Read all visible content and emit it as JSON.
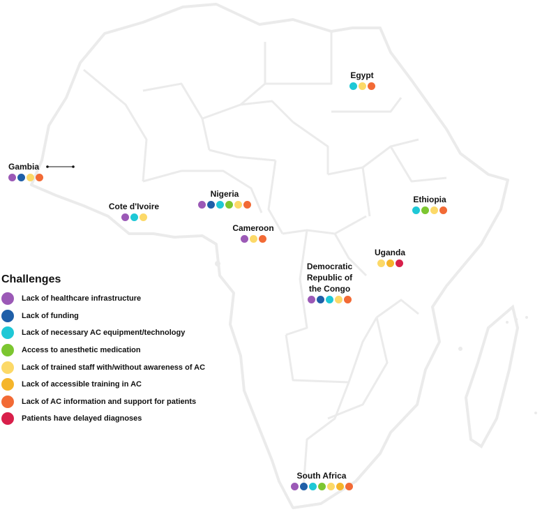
{
  "legend": {
    "title": "Challenges",
    "items": [
      {
        "key": "infra",
        "label": "Lack of healthcare infrastructure",
        "color": "#9b59b6"
      },
      {
        "key": "funding",
        "label": "Lack of funding",
        "color": "#1f5fa8"
      },
      {
        "key": "equipment",
        "label": "Lack of necessary AC equipment/technology",
        "color": "#1ec8d6"
      },
      {
        "key": "anesthetic",
        "label": "Access to anesthetic medication",
        "color": "#7cc630"
      },
      {
        "key": "staff",
        "label": "Lack of trained staff with/without awareness of AC",
        "color": "#fcd968"
      },
      {
        "key": "training",
        "label": "Lack of accessible training in AC",
        "color": "#f5b52a"
      },
      {
        "key": "info",
        "label": "Lack of AC information and support for patients",
        "color": "#f26a35"
      },
      {
        "key": "delayed",
        "label": "Patients have delayed diagnoses",
        "color": "#d81f4a"
      }
    ]
  },
  "countries": [
    {
      "key": "egypt",
      "name": "Egypt",
      "challenges": [
        "equipment",
        "staff",
        "info"
      ]
    },
    {
      "key": "gambia",
      "name": "Gambia",
      "challenges": [
        "infra",
        "funding",
        "staff",
        "info"
      ]
    },
    {
      "key": "cote",
      "name": "Cote d'Ivoire",
      "challenges": [
        "infra",
        "equipment",
        "staff"
      ]
    },
    {
      "key": "nigeria",
      "name": "Nigeria",
      "challenges": [
        "infra",
        "funding",
        "equipment",
        "anesthetic",
        "staff",
        "info"
      ]
    },
    {
      "key": "cameroon",
      "name": "Cameroon",
      "challenges": [
        "infra",
        "staff",
        "info"
      ]
    },
    {
      "key": "ethiopia",
      "name": "Ethiopia",
      "challenges": [
        "equipment",
        "anesthetic",
        "staff",
        "info"
      ]
    },
    {
      "key": "uganda",
      "name": "Uganda",
      "challenges": [
        "staff",
        "training",
        "delayed"
      ]
    },
    {
      "key": "drc",
      "name": "Democratic Republic of the Congo",
      "challenges": [
        "infra",
        "funding",
        "equipment",
        "staff",
        "info"
      ]
    },
    {
      "key": "south_africa",
      "name": "South Africa",
      "challenges": [
        "infra",
        "funding",
        "equipment",
        "anesthetic",
        "staff",
        "training",
        "info"
      ]
    }
  ]
}
